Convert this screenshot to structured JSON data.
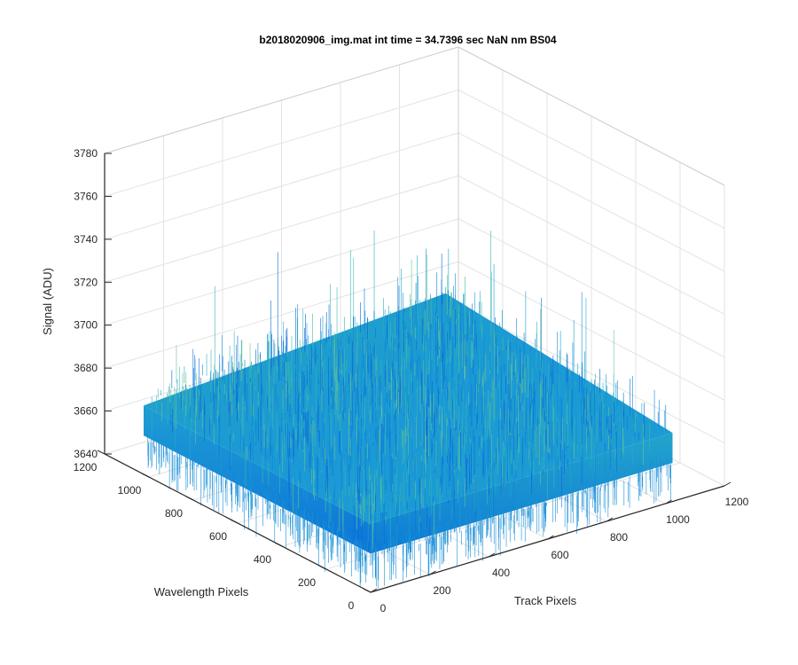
{
  "chart_data": {
    "type": "surface",
    "title": "b2018020906_img.mat int time = 34.7396 sec  NaN nm BS04",
    "xlabel": "Track Pixels",
    "ylabel": "Wavelength Pixels",
    "zlabel": "Signal (ADU)",
    "xlim": [
      0,
      1200
    ],
    "ylim": [
      0,
      1200
    ],
    "zlim": [
      3640,
      3780
    ],
    "x_ticks": [
      "0",
      "200",
      "400",
      "600",
      "800",
      "1000",
      "1200"
    ],
    "y_ticks": [
      "0",
      "200",
      "400",
      "600",
      "800",
      "1000",
      "1200"
    ],
    "z_ticks": [
      "3640",
      "3660",
      "3680",
      "3700",
      "3720",
      "3740",
      "3760",
      "3780"
    ],
    "surface": {
      "x_range": [
        0,
        1024
      ],
      "y_range": [
        0,
        1024
      ],
      "signal_mean": 3668,
      "signal_range": [
        3640,
        3740
      ],
      "description_colormap": "parula"
    },
    "grid": true,
    "colors": {
      "low": "#0a6fd6",
      "mid": "#1ea1d8",
      "high": "#5ec4a0",
      "axis": "#262626",
      "grid": "#e3e3e3"
    }
  }
}
